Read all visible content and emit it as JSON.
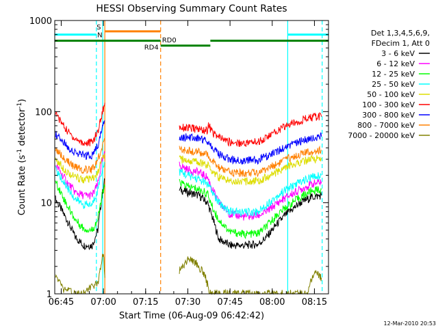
{
  "chart_data": {
    "type": "line",
    "title": "HESSI Observing Summary Count Rates",
    "xlabel": "Start Time (06-Aug-09 06:42:42)",
    "ylabel": "Count Rate (s",
    "ylabel_sup": "-1",
    "ylabel_tail": " detector",
    "ylabel_sup2": "-1",
    "ylabel_end": ")",
    "y_scale": "log",
    "xlim": [
      "06:42:42",
      "08:20:00"
    ],
    "ylim": [
      1,
      1000
    ],
    "x_ticks": [
      "06:45",
      "07:00",
      "07:15",
      "07:30",
      "07:45",
      "08:00",
      "08:15"
    ],
    "y_ticks": [
      "1",
      "10",
      "100",
      "1000"
    ],
    "legend_header": [
      "Det 1,3,4,5,6,9,",
      "FDecim 1, Att 0"
    ],
    "legend_position": "right",
    "series": [
      {
        "name": "3 - 6 keV",
        "color": "#000000",
        "segments": [
          [
            [
              "06:43:00",
              11
            ],
            [
              "06:47:00",
              6.5
            ],
            [
              "06:50:00",
              4.2
            ],
            [
              "06:53:00",
              3.4
            ],
            [
              "06:56:00",
              3.4
            ],
            [
              "06:58:00",
              5
            ],
            [
              "06:59:30",
              12
            ],
            [
              "07:00:30",
              18
            ]
          ],
          [
            [
              "07:27:00",
              14
            ],
            [
              "07:30:00",
              13
            ],
            [
              "07:34:00",
              12
            ],
            [
              "07:37:00",
              10
            ],
            [
              "07:39:00",
              6.5
            ],
            [
              "07:41:00",
              4
            ],
            [
              "07:45:00",
              3.4
            ],
            [
              "07:50:00",
              3.4
            ],
            [
              "07:55:00",
              3.5
            ],
            [
              "07:58:00",
              4.2
            ],
            [
              "08:02:00",
              6
            ],
            [
              "08:05:00",
              7.5
            ],
            [
              "08:10:00",
              10
            ],
            [
              "08:14:00",
              11.5
            ],
            [
              "08:17:30",
              12
            ]
          ]
        ]
      },
      {
        "name": "6 - 12 keV",
        "color": "#ff00ff",
        "segments": [
          [
            [
              "06:43:00",
              26
            ],
            [
              "06:47:00",
              17
            ],
            [
              "06:50:00",
              13
            ],
            [
              "06:53:00",
              12
            ],
            [
              "06:56:00",
              12
            ],
            [
              "06:58:00",
              16
            ],
            [
              "06:59:30",
              28
            ],
            [
              "07:00:30",
              35
            ]
          ],
          [
            [
              "07:27:00",
              26
            ],
            [
              "07:30:00",
              23
            ],
            [
              "07:34:00",
              21.5
            ],
            [
              "07:37:00",
              19
            ],
            [
              "07:39:00",
              13.5
            ],
            [
              "07:41:00",
              10
            ],
            [
              "07:45:00",
              7.5
            ],
            [
              "07:50:00",
              7
            ],
            [
              "07:55:00",
              7.2
            ],
            [
              "07:58:00",
              8
            ],
            [
              "08:02:00",
              10
            ],
            [
              "08:05:00",
              11.5
            ],
            [
              "08:10:00",
              14
            ],
            [
              "08:14:00",
              16
            ],
            [
              "08:17:30",
              17
            ]
          ]
        ]
      },
      {
        "name": "12 - 25 keV",
        "color": "#00ff00",
        "segments": [
          [
            [
              "06:43:00",
              17
            ],
            [
              "06:47:00",
              9.5
            ],
            [
              "06:50:00",
              6.5
            ],
            [
              "06:53:00",
              5.2
            ],
            [
              "06:56:00",
              5
            ],
            [
              "06:58:00",
              6.5
            ],
            [
              "06:59:30",
              12
            ],
            [
              "07:00:30",
              15
            ]
          ],
          [
            [
              "07:27:00",
              17
            ],
            [
              "07:30:00",
              15
            ],
            [
              "07:34:00",
              14
            ],
            [
              "07:37:00",
              12.5
            ],
            [
              "07:39:00",
              8.5
            ],
            [
              "07:41:00",
              6.5
            ],
            [
              "07:45:00",
              4.8
            ],
            [
              "07:50:00",
              4.5
            ],
            [
              "07:55:00",
              4.6
            ],
            [
              "07:58:00",
              5.5
            ],
            [
              "08:02:00",
              7.5
            ],
            [
              "08:05:00",
              9
            ],
            [
              "08:10:00",
              11.5
            ],
            [
              "08:14:00",
              13.5
            ],
            [
              "08:17:30",
              14
            ]
          ]
        ]
      },
      {
        "name": "25 - 50 keV",
        "color": "#00ffff",
        "segments": [
          [
            [
              "06:43:00",
              23
            ],
            [
              "06:47:00",
              15
            ],
            [
              "06:50:00",
              11
            ],
            [
              "06:53:00",
              9.5
            ],
            [
              "06:56:00",
              9.5
            ],
            [
              "06:58:00",
              14
            ],
            [
              "06:59:30",
              23
            ],
            [
              "07:00:30",
              28
            ]
          ],
          [
            [
              "07:27:00",
              22
            ],
            [
              "07:30:00",
              20
            ],
            [
              "07:34:00",
              18
            ],
            [
              "07:37:00",
              16
            ],
            [
              "07:39:00",
              12.5
            ],
            [
              "07:41:00",
              10
            ],
            [
              "07:45:00",
              8
            ],
            [
              "07:50:00",
              7.8
            ],
            [
              "07:55:00",
              8
            ],
            [
              "07:58:00",
              9.5
            ],
            [
              "08:02:00",
              12
            ],
            [
              "08:05:00",
              14
            ],
            [
              "08:10:00",
              17
            ],
            [
              "08:14:00",
              19
            ],
            [
              "08:17:30",
              20
            ]
          ]
        ]
      },
      {
        "name": "50 - 100 keV",
        "color": "#dddd00",
        "segments": [
          [
            [
              "06:43:00",
              30
            ],
            [
              "06:47:00",
              22
            ],
            [
              "06:50:00",
              19
            ],
            [
              "06:53:00",
              18
            ],
            [
              "06:56:00",
              18
            ],
            [
              "06:58:00",
              21
            ],
            [
              "06:59:30",
              30
            ],
            [
              "07:00:30",
              35
            ]
          ],
          [
            [
              "07:27:00",
              30
            ],
            [
              "07:30:00",
              29
            ],
            [
              "07:34:00",
              28
            ],
            [
              "07:37:00",
              26
            ],
            [
              "07:39:00",
              22
            ],
            [
              "07:41:00",
              19
            ],
            [
              "07:45:00",
              17.5
            ],
            [
              "07:50:00",
              17
            ],
            [
              "07:55:00",
              17.5
            ],
            [
              "07:58:00",
              19
            ],
            [
              "08:02:00",
              22
            ],
            [
              "08:05:00",
              24.5
            ],
            [
              "08:10:00",
              28
            ],
            [
              "08:14:00",
              30
            ],
            [
              "08:17:30",
              31
            ]
          ]
        ]
      },
      {
        "name": "100 - 300 keV",
        "color": "#ff0000",
        "segments": [
          [
            [
              "06:43:00",
              95
            ],
            [
              "06:47:00",
              62
            ],
            [
              "06:50:00",
              50
            ],
            [
              "06:53:00",
              45
            ],
            [
              "06:56:00",
              46
            ],
            [
              "06:58:00",
              60
            ],
            [
              "06:59:30",
              95
            ],
            [
              "07:00:30",
              125
            ]
          ],
          [
            [
              "07:27:00",
              68
            ],
            [
              "07:30:00",
              66
            ],
            [
              "07:34:00",
              64
            ],
            [
              "07:37:00",
              62
            ],
            [
              "07:37:10",
              72
            ],
            [
              "07:39:00",
              58
            ],
            [
              "07:41:00",
              52
            ],
            [
              "07:45:00",
              46
            ],
            [
              "07:50:00",
              45
            ],
            [
              "07:55:00",
              47
            ],
            [
              "07:58:00",
              52
            ],
            [
              "08:02:00",
              62
            ],
            [
              "08:05:00",
              70
            ],
            [
              "08:10:00",
              80
            ],
            [
              "08:14:00",
              86
            ],
            [
              "08:17:30",
              88
            ]
          ]
        ]
      },
      {
        "name": "300 - 800 keV",
        "color": "#0000ff",
        "segments": [
          [
            [
              "06:43:00",
              57
            ],
            [
              "06:47:00",
              42
            ],
            [
              "06:50:00",
              35
            ],
            [
              "06:53:00",
              33
            ],
            [
              "06:56:00",
              33
            ],
            [
              "06:58:00",
              42
            ],
            [
              "06:59:30",
              65
            ],
            [
              "07:00:30",
              80
            ]
          ],
          [
            [
              "07:27:00",
              53
            ],
            [
              "07:30:00",
              52
            ],
            [
              "07:34:00",
              51
            ],
            [
              "07:37:00",
              48
            ],
            [
              "07:39:00",
              40
            ],
            [
              "07:41:00",
              34
            ],
            [
              "07:45:00",
              30
            ],
            [
              "07:50:00",
              29
            ],
            [
              "07:55:00",
              29.5
            ],
            [
              "07:58:00",
              32
            ],
            [
              "08:02:00",
              37
            ],
            [
              "08:05:00",
              41
            ],
            [
              "08:10:00",
              47
            ],
            [
              "08:14:00",
              51
            ],
            [
              "08:17:30",
              53
            ]
          ]
        ]
      },
      {
        "name": "800 - 7000 keV",
        "color": "#ff8000",
        "segments": [
          [
            [
              "06:43:00",
              39
            ],
            [
              "06:47:00",
              29
            ],
            [
              "06:50:00",
              24.5
            ],
            [
              "06:53:00",
              23
            ],
            [
              "06:56:00",
              23
            ],
            [
              "06:58:00",
              29
            ],
            [
              "06:59:30",
              42
            ],
            [
              "07:00:30",
              50
            ]
          ],
          [
            [
              "07:27:00",
              38
            ],
            [
              "07:30:00",
              37
            ],
            [
              "07:34:00",
              36
            ],
            [
              "07:37:00",
              33
            ],
            [
              "07:39:00",
              28
            ],
            [
              "07:41:00",
              24
            ],
            [
              "07:45:00",
              21.5
            ],
            [
              "07:50:00",
              21
            ],
            [
              "07:55:00",
              21.5
            ],
            [
              "07:58:00",
              23.5
            ],
            [
              "08:02:00",
              27
            ],
            [
              "08:05:00",
              30
            ],
            [
              "08:10:00",
              34
            ],
            [
              "08:14:00",
              36.5
            ],
            [
              "08:17:30",
              38
            ]
          ]
        ]
      },
      {
        "name": "7000 - 20000 keV",
        "color": "#808000",
        "segments": [
          [
            [
              "06:43:00",
              1.6
            ],
            [
              "06:44:30",
              1.3
            ],
            [
              "06:46:00",
              1.1
            ],
            [
              "06:52:00",
              1.0
            ],
            [
              "06:58:00",
              1.3
            ],
            [
              "06:59:30",
              2.5
            ],
            [
              "07:00:00",
              3.0
            ],
            [
              "07:00:30",
              1.5
            ]
          ],
          [
            [
              "07:27:00",
              1.8
            ],
            [
              "07:30:00",
              2.4
            ],
            [
              "07:33:00",
              2.2
            ],
            [
              "07:36:00",
              1.6
            ],
            [
              "07:38:00",
              1.0
            ],
            [
              "08:12:00",
              1.0
            ],
            [
              "08:14:00",
              1.4
            ],
            [
              "08:15:30",
              1.8
            ],
            [
              "08:17:30",
              1.5
            ]
          ]
        ]
      }
    ],
    "state_bars": [
      {
        "label": "",
        "color": "#00ffff",
        "y": 700,
        "from": "06:42:42",
        "to": "06:57:30"
      },
      {
        "label": "S",
        "color": "#ff8000",
        "y": 760,
        "from": "07:00:30",
        "to": "07:20:20"
      },
      {
        "label": "N",
        "color": "#00ffff",
        "y": 690,
        "from": "06:59:45",
        "to": "06:59:45"
      },
      {
        "label": "",
        "color": "#00ffff",
        "y": 700,
        "from": "08:05:30",
        "to": "08:20:00"
      },
      {
        "label": "RD4",
        "color": "#008000",
        "y": 600,
        "from": "06:42:42",
        "to": "07:20:20"
      },
      {
        "label": "RD0",
        "color": "#008000",
        "y": 530,
        "from": "07:20:20",
        "to": "07:38:00"
      },
      {
        "label": "",
        "color": "#008000",
        "y": 600,
        "from": "07:38:00",
        "to": "08:20:00"
      }
    ],
    "vertical_markers": [
      {
        "time": "06:57:30",
        "color": "#00ffff",
        "style": "dashed"
      },
      {
        "time": "06:59:45",
        "color": "#00ffff",
        "style": "solid"
      },
      {
        "time": "07:00:30",
        "color": "#ff8000",
        "style": "solid"
      },
      {
        "time": "07:20:20",
        "color": "#ff8000",
        "style": "dashed"
      },
      {
        "time": "08:05:30",
        "color": "#00ffff",
        "style": "solid"
      },
      {
        "time": "08:17:45",
        "color": "#00ffff",
        "style": "dashed"
      }
    ],
    "footer_date": "12-Mar-2010 20:53"
  }
}
